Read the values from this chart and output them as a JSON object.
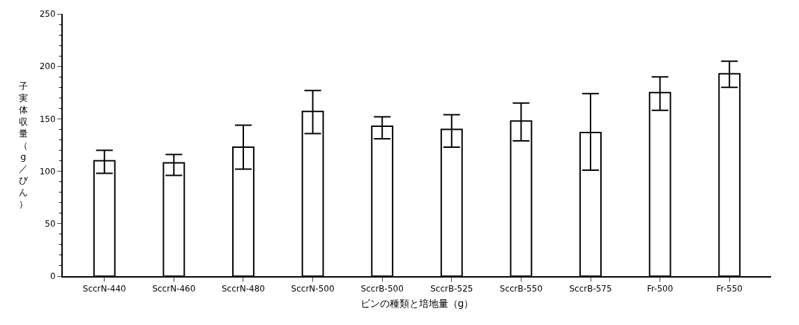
{
  "chart_data": {
    "type": "bar",
    "xlabel": "ビンの種類と培地量（g）",
    "ylabel": "子実体収量（g／びん）",
    "categories": [
      "SccrN-440",
      "SccrN-460",
      "SccrN-480",
      "SccrN-500",
      "SccrB-500",
      "SccrB-525",
      "SccrB-550",
      "SccrB-575",
      "Fr-500",
      "Fr-550"
    ],
    "values": [
      110,
      108,
      123,
      157,
      143,
      140,
      148,
      137,
      175,
      193
    ],
    "errors": [
      [
        98,
        120
      ],
      [
        96,
        116
      ],
      [
        102,
        144
      ],
      [
        136,
        177
      ],
      [
        131,
        152
      ],
      [
        123,
        154
      ],
      [
        129,
        165
      ],
      [
        101,
        174
      ],
      [
        158,
        190
      ],
      [
        180,
        205
      ]
    ],
    "color": "#ffffff",
    "ylim": [
      0,
      250
    ],
    "yticks": [
      0,
      50,
      100,
      150,
      200,
      250
    ]
  }
}
